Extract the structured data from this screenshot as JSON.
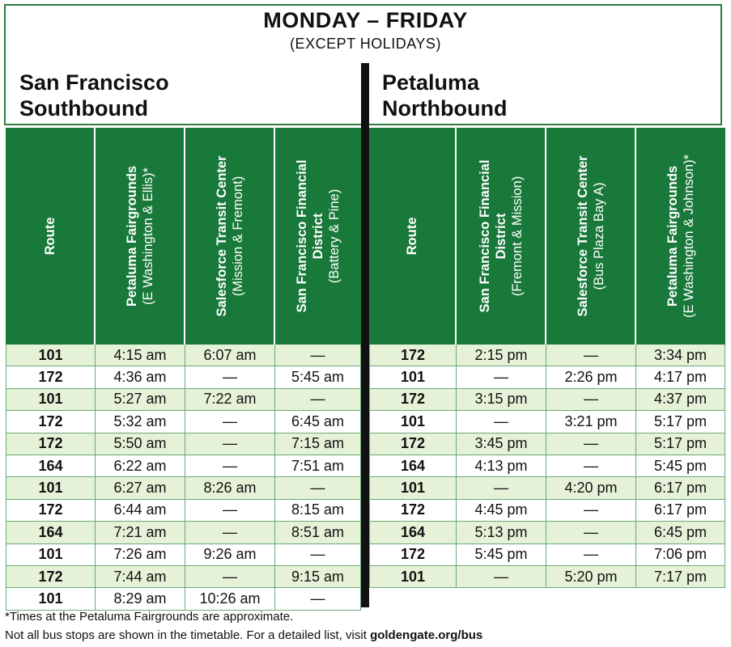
{
  "header": {
    "title": "MONDAY – FRIDAY",
    "subtitle": "(EXCEPT HOLIDAYS)"
  },
  "southbound": {
    "title_line1": "San Francisco",
    "title_line2": "Southbound",
    "columns": [
      {
        "bold": "Route",
        "normal": ""
      },
      {
        "bold": "Petaluma Fairgrounds",
        "normal": "(E Washington & Ellis)*"
      },
      {
        "bold": "Salesforce Transit Center",
        "normal": "(Mission & Fremont)"
      },
      {
        "bold": "San Francisco Financial District",
        "normal": "(Battery & Pine)"
      }
    ],
    "rows": [
      [
        "101",
        "4:15 am",
        "6:07 am",
        "—"
      ],
      [
        "172",
        "4:36 am",
        "—",
        "5:45 am"
      ],
      [
        "101",
        "5:27 am",
        "7:22 am",
        "—"
      ],
      [
        "172",
        "5:32 am",
        "—",
        "6:45 am"
      ],
      [
        "172",
        "5:50 am",
        "—",
        "7:15 am"
      ],
      [
        "164",
        "6:22 am",
        "—",
        "7:51 am"
      ],
      [
        "101",
        "6:27 am",
        "8:26 am",
        "—"
      ],
      [
        "172",
        "6:44 am",
        "—",
        "8:15 am"
      ],
      [
        "164",
        "7:21 am",
        "—",
        "8:51 am"
      ],
      [
        "101",
        "7:26 am",
        "9:26 am",
        "—"
      ],
      [
        "172",
        "7:44 am",
        "—",
        "9:15 am"
      ],
      [
        "101",
        "8:29 am",
        "10:26 am",
        "—"
      ]
    ]
  },
  "northbound": {
    "title_line1": "Petaluma",
    "title_line2": "Northbound",
    "columns": [
      {
        "bold": "Route",
        "normal": ""
      },
      {
        "bold": "San Francisco Financial District",
        "normal": "(Fremont & Mission)"
      },
      {
        "bold": "Salesforce Transit Center",
        "normal": "(Bus Plaza Bay A)"
      },
      {
        "bold": "Petaluma Fairgrounds",
        "normal": "(E Washington & Johnson)*"
      }
    ],
    "rows": [
      [
        "172",
        "2:15 pm",
        "—",
        "3:34 pm"
      ],
      [
        "101",
        "—",
        "2:26 pm",
        "4:17 pm"
      ],
      [
        "172",
        "3:15 pm",
        "—",
        "4:37 pm"
      ],
      [
        "101",
        "—",
        "3:21 pm",
        "5:17 pm"
      ],
      [
        "172",
        "3:45 pm",
        "—",
        "5:17 pm"
      ],
      [
        "164",
        "4:13 pm",
        "—",
        "5:45 pm"
      ],
      [
        "101",
        "—",
        "4:20 pm",
        "6:17 pm"
      ],
      [
        "172",
        "4:45 pm",
        "—",
        "6:17 pm"
      ],
      [
        "164",
        "5:13 pm",
        "—",
        "6:45 pm"
      ],
      [
        "172",
        "5:45 pm",
        "—",
        "7:06 pm"
      ],
      [
        "101",
        "—",
        "5:20 pm",
        "7:17 pm"
      ]
    ]
  },
  "footer": {
    "footnote": "*Times at the Petaluma Fairgrounds are approximate.",
    "notice_text": "Not all bus stops are shown in the timetable. For a detailed list, visit ",
    "notice_link": "goldengate.org/bus"
  },
  "colors": {
    "header_green": "#19793a",
    "row_shade": "#e5f2d7",
    "divider": "#111111"
  }
}
